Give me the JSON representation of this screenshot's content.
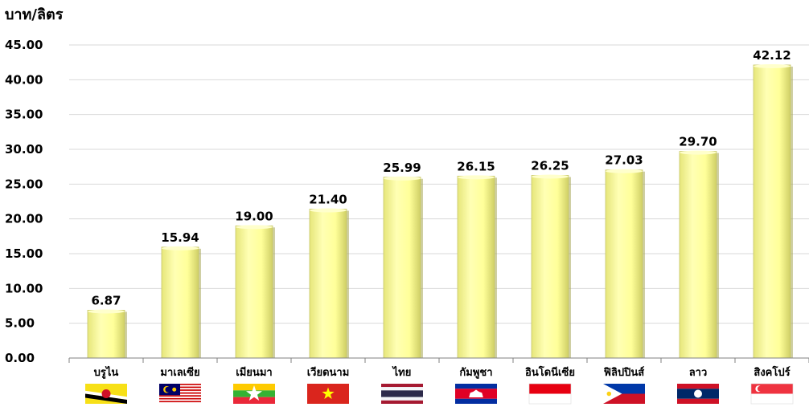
{
  "chart_data": {
    "type": "bar",
    "ylabel": "บาท/ลิตร",
    "xlabel": "",
    "ylim": [
      0,
      45
    ],
    "yticks": [
      "0.00",
      "5.00",
      "10.00",
      "15.00",
      "20.00",
      "25.00",
      "30.00",
      "35.00",
      "40.00",
      "45.00"
    ],
    "grid": true,
    "categories": [
      "บรูไน",
      "มาเลเซีย",
      "เมียนมา",
      "เวียดนาม",
      "ไทย",
      "กัมพูชา",
      "อินโดนีเซีย",
      "ฟิลิปปินส์",
      "ลาว",
      "สิงคโปร์"
    ],
    "values": [
      6.87,
      15.94,
      19.0,
      21.4,
      25.99,
      26.15,
      26.25,
      27.03,
      29.7,
      42.12
    ],
    "value_labels": [
      "6.87",
      "15.94",
      "19.00",
      "21.40",
      "25.99",
      "26.15",
      "26.25",
      "27.03",
      "29.70",
      "42.12"
    ],
    "flags": [
      "brunei-flag",
      "malaysia-flag",
      "myanmar-flag",
      "vietnam-flag",
      "thailand-flag",
      "cambodia-flag",
      "indonesia-flag",
      "philippines-flag",
      "laos-flag",
      "singapore-flag"
    ],
    "colors": {
      "bar": "#FFFF99",
      "bar_edge": "#C8C86A",
      "grid": "#D9D9D9",
      "axis": "#808080"
    }
  }
}
